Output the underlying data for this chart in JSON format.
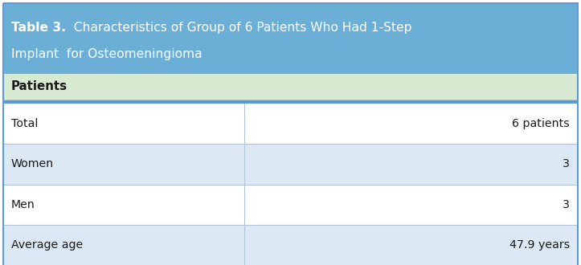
{
  "title_bold": "Table 3.",
  "title_line1_rest": "  Characteristics of Group of 6 Patients Who Had 1-Step",
  "title_line2": "Implant  for Osteomeningioma",
  "header_label": "Patients",
  "rows": [
    [
      "Total",
      "6 patients"
    ],
    [
      "Women",
      "3"
    ],
    [
      "Men",
      "3"
    ],
    [
      "Average age",
      "47.9 years"
    ]
  ],
  "title_bg": "#6BAED6",
  "header_bg": "#D9EAD3",
  "row_bg_white": "#FFFFFF",
  "row_bg_blue": "#DCE9F5",
  "divider_color": "#B0C4D8",
  "thick_border_color": "#5B9BD5",
  "title_text_color": "#FFFFFF",
  "header_text_color": "#1A1A1A",
  "row_text_color": "#1A1A1A",
  "title_fontsize": 11.2,
  "header_fontsize": 10.8,
  "row_fontsize": 10.2,
  "fig_width": 7.23,
  "fig_height": 3.3,
  "dpi": 100
}
